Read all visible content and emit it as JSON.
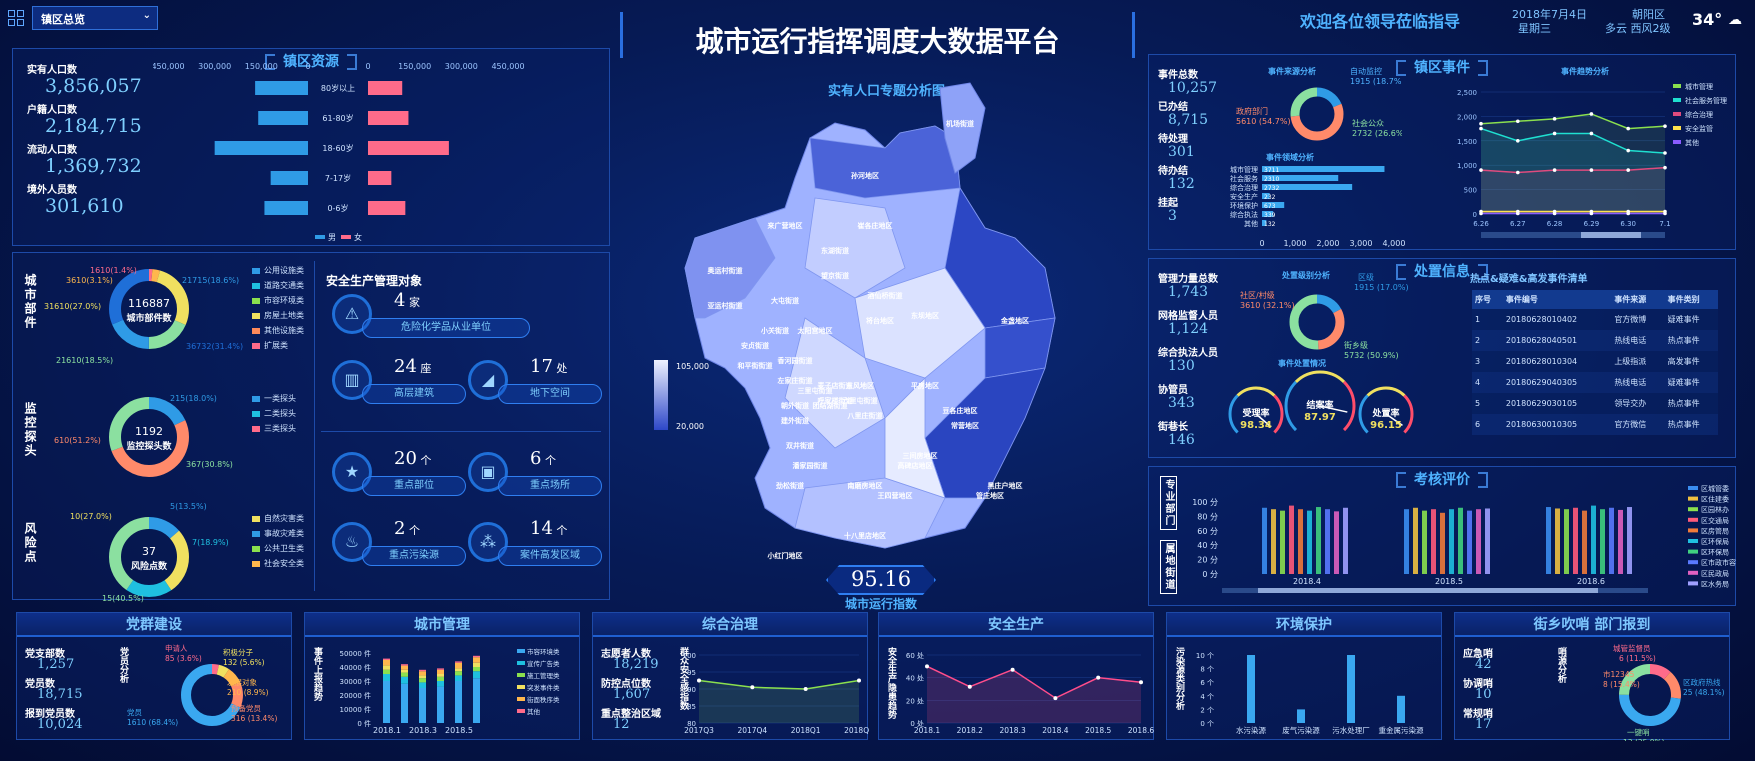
{
  "header": {
    "title": "城市运行指挥调度大数据平台",
    "welcome": "欢迎各位领导莅临指导",
    "date": "2018年7月4日",
    "weekday": "星期三",
    "district": "朝阳区",
    "weather": "多云 西风2级",
    "temp": "34°",
    "region_select": "镇区总览"
  },
  "resources": {
    "title": "镇区资源",
    "stats": [
      {
        "label": "实有人口数",
        "value": "3,856,057"
      },
      {
        "label": "户籍人口数",
        "value": "2,184,715"
      },
      {
        "label": "流动人口数",
        "value": "1,369,732"
      },
      {
        "label": "境外人员数",
        "value": "301,610"
      }
    ],
    "pyramid": {
      "left_ticks": [
        "450,000",
        "300,000",
        "150,000",
        "0"
      ],
      "right_ticks": [
        "0",
        "150,000",
        "300,000",
        "450,000"
      ],
      "ages": [
        "80岁以上",
        "61-80岁",
        "18-60岁",
        "7-17岁",
        "0-6岁"
      ],
      "male": [
        170000,
        160000,
        300000,
        120000,
        140000
      ],
      "female": [
        110000,
        130000,
        260000,
        75000,
        120000
      ],
      "legend_male": "男",
      "legend_female": "女"
    }
  },
  "parts": {
    "title": "城市部件",
    "center_value": "116887",
    "center_label": "城市部件数",
    "labels": [
      "1610(1.4%)",
      "3610(3.1%)",
      "31610(27.0%)",
      "21610(18.5%)",
      "21715(18.6%)",
      "36732(31.4%)"
    ],
    "legend": [
      "公用设施类",
      "道路交通类",
      "市容环境类",
      "房屋土地类",
      "其他设施类",
      "扩展类"
    ]
  },
  "monitor": {
    "title": "监控探头",
    "center_value": "1192",
    "center_label": "监控探头数",
    "labels": [
      "215(18.0%)",
      "610(51.2%)",
      "367(30.8%)"
    ],
    "legend": [
      "一类探头",
      "二类探头",
      "三类探头"
    ]
  },
  "risk": {
    "title": "风险点",
    "center_value": "37",
    "center_label": "风险点数",
    "labels": [
      "5(13.5%)",
      "10(27.0%)",
      "7(18.9%)",
      "15(40.5%)"
    ],
    "legend": [
      "自然灾害类",
      "事故灾难类",
      "公共卫生类",
      "社会安全类"
    ]
  },
  "safety": {
    "title": "安全生产管理对象",
    "items": [
      {
        "num": "4",
        "unit": "家",
        "label": "危险化学品从业单位",
        "icon": "hazard-icon"
      },
      {
        "num": "24",
        "unit": "座",
        "label": "高层建筑",
        "icon": "building-icon"
      },
      {
        "num": "17",
        "unit": "处",
        "label": "地下空间",
        "icon": "underground-icon"
      },
      {
        "num": "20",
        "unit": "个",
        "label": "重点部位",
        "icon": "star-icon"
      },
      {
        "num": "6",
        "unit": "个",
        "label": "重点场所",
        "icon": "place-icon"
      },
      {
        "num": "2",
        "unit": "个",
        "label": "重点污染源",
        "icon": "factory-icon"
      },
      {
        "num": "14",
        "unit": "个",
        "label": "案件高发区域",
        "icon": "dots-icon"
      }
    ]
  },
  "map": {
    "title": "实有人口专题分析图",
    "legend_max": "105,000",
    "legend_min": "20,000",
    "index_value": "95.16",
    "index_label": "城市运行指数",
    "areas": [
      "机场街道",
      "孙河地区",
      "来广营地区",
      "崔各庄地区",
      "望京街道",
      "东湖街道",
      "酒仙桥街道",
      "将台地区",
      "金盏地区",
      "东坝地区",
      "奥运村街道",
      "亚运村街道",
      "大屯街道",
      "小关街道",
      "安贞街道",
      "和平街街道",
      "太阳宫地区",
      "香河园街道",
      "左家庄街道",
      "麦子店街道",
      "东风地区",
      "平房地区",
      "常营地区",
      "三间房地区",
      "管庄地区",
      "豆各庄地区",
      "黑庄户地区",
      "十八里店地区",
      "小红门地区",
      "南磨房地区",
      "王四营地区",
      "高碑店地区",
      "双井街道",
      "潘家园街道",
      "劲松街道",
      "八里庄街道",
      "朝外街道",
      "建外街道",
      "团结湖街道",
      "呼家楼街道",
      "三里屯街道",
      "六里屯街道"
    ]
  },
  "events": {
    "title": "镇区事件",
    "stats": [
      {
        "label": "事件总数",
        "value": "10,257"
      },
      {
        "label": "已办结",
        "value": "8,715"
      },
      {
        "label": "待处理",
        "value": "301"
      },
      {
        "label": "待办结",
        "value": "132"
      },
      {
        "label": "挂起",
        "value": "3"
      }
    ],
    "source_title": "事件来源分析",
    "source_labels": [
      "自动监控",
      "1915 (18.7%)",
      "政府部门",
      "5610 (54.7%)",
      "社会公众",
      "2732 (26.6%)"
    ],
    "type_title": "事件领域分析",
    "type_cats": [
      "城市管理",
      "社会服务",
      "综合治理",
      "安全生产",
      "环境保护",
      "综合执法",
      "其他"
    ],
    "type_vals": [
      3711,
      2310,
      2732,
      232,
      673,
      339,
      132
    ],
    "type_ticks": [
      "0",
      "1,000",
      "2,000",
      "3,000",
      "4,000"
    ],
    "trend_title": "事件趋势分析",
    "trend_x": [
      "6.26",
      "6.27",
      "6.28",
      "6.29",
      "6.30",
      "7.1"
    ],
    "trend_ticks": [
      "0",
      "500",
      "1,000",
      "1,500",
      "2,000",
      "2,500"
    ],
    "trend_series": [
      {
        "name": "城市管理",
        "color": "#8be04e",
        "values": [
          1850,
          1900,
          1950,
          2050,
          1750,
          1800
        ]
      },
      {
        "name": "社会服务管理",
        "color": "#1fe0d0",
        "values": [
          1750,
          1500,
          1650,
          1650,
          1300,
          1250
        ]
      },
      {
        "name": "综合治理",
        "color": "#e04b7e",
        "values": [
          900,
          850,
          900,
          900,
          900,
          950
        ]
      },
      {
        "name": "安全监管",
        "color": "#ffe24d",
        "values": [
          50,
          50,
          50,
          50,
          50,
          50
        ]
      },
      {
        "name": "其他",
        "color": "#8a5cff",
        "values": [
          10,
          10,
          10,
          10,
          10,
          10
        ]
      }
    ]
  },
  "handle": {
    "title": "处置信息",
    "stats": [
      {
        "label": "管理力量总数",
        "value": "1,743"
      },
      {
        "label": "网格监督人员",
        "value": "1,124"
      },
      {
        "label": "综合执法人员",
        "value": "130"
      },
      {
        "label": "协管员",
        "value": "343"
      },
      {
        "label": "街巷长",
        "value": "146"
      }
    ],
    "level_title": "处置级别分析",
    "level_labels": [
      "区级",
      "1915 (17.0%)",
      "社区/村级",
      "3610 (32.1%)",
      "街乡级",
      "5732 (50.9%)"
    ],
    "status_title": "事件处置情况",
    "gauges": [
      {
        "name": "受理率",
        "value": "98.34"
      },
      {
        "name": "结案率",
        "value": "87.97"
      },
      {
        "name": "处置率",
        "value": "96.15"
      }
    ],
    "table_title": "热点&疑难&高发事件清单",
    "cols": [
      "序号",
      "事件编号",
      "事件来源",
      "事件类别"
    ],
    "rows": [
      [
        "1",
        "20180628010402",
        "官方微博",
        "疑难事件"
      ],
      [
        "2",
        "20180628040501",
        "热线电话",
        "热点事件"
      ],
      [
        "3",
        "20180628010304",
        "上级指派",
        "高发事件"
      ],
      [
        "4",
        "20180629040305",
        "热线电话",
        "疑难事件"
      ],
      [
        "5",
        "20180629030105",
        "领导交办",
        "热点事件"
      ],
      [
        "6",
        "20180630010305",
        "官方微信",
        "热点事件"
      ]
    ]
  },
  "eval": {
    "title": "考核评价",
    "side1": "专业部门",
    "side2": "属地街道",
    "ticks": [
      "0 分",
      "20 分",
      "40 分",
      "60 分",
      "80 分",
      "100 分"
    ],
    "groups": [
      "2018.4",
      "2018.5",
      "2018.6"
    ],
    "legend": [
      "区城管委",
      "区住建委",
      "区园林办",
      "区交通局",
      "区房管局",
      "区环保局",
      "区环保局",
      "区市政市容委",
      "区民政局",
      "区水务局"
    ],
    "colors": [
      "#3a8df0",
      "#f0c040",
      "#8be04e",
      "#ff5a7a",
      "#f07a3a",
      "#1fc0e0",
      "#40d080",
      "#5a7aff",
      "#e060c0",
      "#a0a0ff"
    ],
    "values": [
      [
        92,
        90,
        88,
        95,
        90,
        88,
        93,
        90,
        87,
        92
      ],
      [
        90,
        92,
        88,
        90,
        85,
        90,
        92,
        88,
        90,
        91
      ],
      [
        93,
        91,
        90,
        92,
        88,
        95,
        90,
        92,
        89,
        93
      ]
    ]
  },
  "party": {
    "title": "党群建设",
    "stats": [
      {
        "label": "党支部数",
        "value": "1,257"
      },
      {
        "label": "党员数",
        "value": "18,715"
      },
      {
        "label": "报到党员数",
        "value": "10,024"
      }
    ],
    "side": "党员分析",
    "labels": [
      "申请人",
      "85 (3.6%)",
      "积极分子",
      "132 (5.6%)",
      "发展对象",
      "210 (8.9%)",
      "预备党员",
      "316 (13.4%)",
      "党员",
      "1610 (68.4%)"
    ]
  },
  "city": {
    "title": "城市管理",
    "side": "事件上报趋势",
    "ticks": [
      "0 件",
      "10000 件",
      "20000 件",
      "30000 件",
      "40000 件",
      "50000 件"
    ],
    "x": [
      "2018.1",
      "2018.3",
      "2018.5"
    ],
    "legend": [
      "市容环境类",
      "宣传广告类",
      "施工管理类",
      "突发事件类",
      "街面秩序类",
      "其他"
    ],
    "stacks": [
      [
        30000,
        5000,
        3000,
        3000,
        4000,
        1000
      ],
      [
        28000,
        5000,
        3000,
        2000,
        3000,
        1000
      ],
      [
        25000,
        4000,
        3000,
        2000,
        3000,
        1000
      ],
      [
        26000,
        4000,
        3000,
        2000,
        3000,
        1000
      ],
      [
        30000,
        4000,
        3000,
        2000,
        4000,
        1000
      ],
      [
        32000,
        5000,
        3000,
        3000,
        4000,
        1000
      ]
    ]
  },
  "govern": {
    "title": "综合治理",
    "stats": [
      {
        "label": "志愿者人数",
        "value": "18,219"
      },
      {
        "label": "防控点位数",
        "value": "1,607"
      },
      {
        "label": "重点整治区域",
        "value": "12"
      }
    ],
    "side": "群众安全感指数",
    "ticks": [
      "80",
      "85",
      "90",
      "95",
      "100"
    ],
    "x": [
      "2017Q3",
      "2017Q4",
      "2018Q1",
      "2018Q2"
    ],
    "values": [
      92.5,
      90.5,
      90,
      92.5
    ]
  },
  "safe": {
    "title": "安全生产",
    "side": "安全生产隐患趋势",
    "ticks": [
      "0 处",
      "20 处",
      "40 处",
      "60 处"
    ],
    "x": [
      "2018.1",
      "2018.2",
      "2018.3",
      "2018.4",
      "2018.5",
      "2018.6"
    ],
    "values": [
      50,
      32,
      47,
      22,
      40,
      36
    ]
  },
  "env": {
    "title": "环境保护",
    "side": "污染源类别分析",
    "ticks": [
      "0 个",
      "2 个",
      "4 个",
      "6 个",
      "8 个",
      "10 个"
    ],
    "x": [
      "水污染源",
      "废气污染源",
      "污水处理厂",
      "重金属污染源"
    ],
    "values": [
      10,
      2,
      10,
      4
    ]
  },
  "street": {
    "title": "街乡吹哨 部门报到",
    "stats": [
      {
        "label": "应急哨",
        "value": "42"
      },
      {
        "label": "协调哨",
        "value": "10"
      },
      {
        "label": "常规哨",
        "value": "17"
      }
    ],
    "side": "哨源分析",
    "labels": [
      "城管监督员",
      "6 (11.5%)",
      "市12345",
      "8 (15.4%)",
      "区政府热线",
      "25 (48.1%)",
      "一键哨",
      "13 (25.0%)"
    ]
  },
  "colors": {
    "accent": "#4fb3ff",
    "male": "#2f9be6",
    "female": "#ff6b8a",
    "panel_border": "#1d4aa8"
  }
}
